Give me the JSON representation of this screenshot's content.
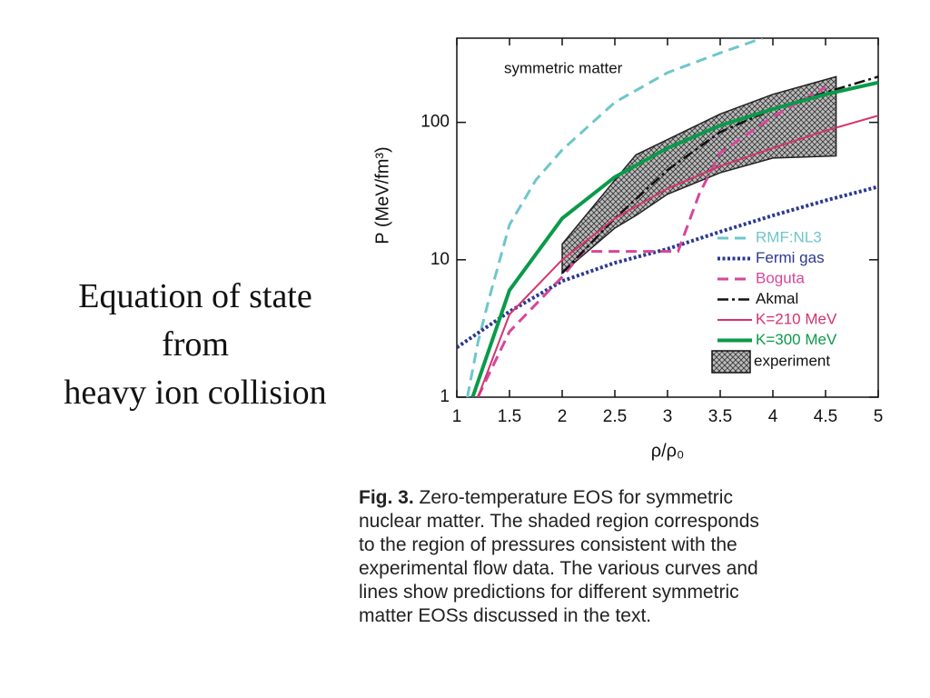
{
  "slide_text": [
    "Equation of state",
    "from",
    "heavy ion collision"
  ],
  "chart_data": {
    "type": "line",
    "annotation": "symmetric matter",
    "x_label": "ρ/ρ₀",
    "y_label": "P (MeV/fm³)",
    "xlim": [
      1,
      5
    ],
    "xticks": [
      1,
      1.5,
      2,
      2.5,
      3,
      3.5,
      4,
      4.5,
      5
    ],
    "ylim": [
      1,
      410
    ],
    "yticks": [
      1,
      10,
      100
    ],
    "log_y": true,
    "legend": "lower right",
    "series": [
      {
        "name": "RMF:NL3",
        "color": "#6ec6ca",
        "style": "dashed",
        "x": [
          1.1,
          1.2,
          1.3,
          1.5,
          1.75,
          2,
          2.5,
          3,
          3.5,
          3.9
        ],
        "values": [
          1,
          2.5,
          5,
          18,
          38,
          63,
          140,
          230,
          320,
          410
        ]
      },
      {
        "name": "Fermi gas",
        "color": "#2b3990",
        "style": "dotted",
        "x": [
          1,
          1.5,
          2,
          2.5,
          3,
          3.5,
          4,
          4.5,
          5
        ],
        "values": [
          2.3,
          4.2,
          7,
          9.5,
          12,
          16,
          21,
          27,
          34
        ]
      },
      {
        "name": "Boguta",
        "color": "#d6469b",
        "style": "dashed",
        "x": [
          1.2,
          1.5,
          2,
          2.2,
          3.1,
          3.3,
          3.5,
          4,
          4.5
        ],
        "values": [
          1,
          3,
          7.5,
          11.5,
          11.5,
          30,
          60,
          110,
          180
        ]
      },
      {
        "name": "Akmal",
        "color": "#111111",
        "style": "dashdot",
        "x": [
          2,
          2.5,
          3,
          3.5,
          4,
          4.5,
          5
        ],
        "values": [
          8,
          20,
          45,
          85,
          125,
          165,
          215
        ]
      },
      {
        "name": "K=210 MeV",
        "color": "#d6336c",
        "style": "solid",
        "x": [
          1.2,
          1.5,
          2,
          2.5,
          3,
          3.5,
          4,
          4.5,
          5
        ],
        "values": [
          1,
          4,
          10,
          20,
          33,
          48,
          65,
          87,
          112
        ]
      },
      {
        "name": "K=300 MeV",
        "color": "#0a9a4a",
        "style": "bold",
        "x": [
          1.15,
          1.5,
          2,
          2.5,
          3,
          3.5,
          4,
          4.5,
          5
        ],
        "values": [
          1,
          6,
          20,
          40,
          65,
          95,
          125,
          160,
          195
        ]
      }
    ],
    "band": {
      "name": "experiment",
      "color": "#222222",
      "x": [
        2,
        2.5,
        2.7,
        3,
        3.5,
        4,
        4.6
      ],
      "upper": [
        13,
        38,
        58,
        75,
        115,
        160,
        215
      ],
      "lower": [
        8,
        17,
        21,
        30,
        43,
        55,
        57
      ]
    }
  },
  "caption": {
    "label": "Fig. 3.",
    "lines": [
      "Zero-temperature EOS for symmetric",
      "nuclear matter. The shaded region corresponds",
      "to the region of pressures consistent with the",
      "experimental flow data. The various curves and",
      "lines show predictions for different symmetric",
      "matter EOSs discussed in the text."
    ]
  }
}
